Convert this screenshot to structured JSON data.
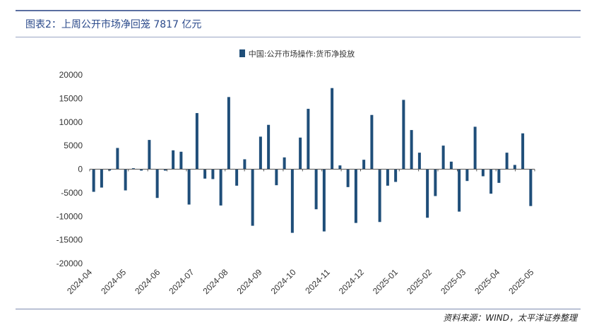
{
  "caption": "图表2：上周公开市场净回笼 7817 亿元",
  "source": "资料来源：WIND，太平洋证券整理",
  "chart_data": {
    "type": "bar",
    "legend": [
      "中国:公开市场操作:货币净投放"
    ],
    "legend_position": "top",
    "grid": false,
    "series_color": "#1f4e79",
    "ylim": [
      -20000,
      20000
    ],
    "yticks": [
      -20000,
      -15000,
      -10000,
      -5000,
      0,
      5000,
      10000,
      15000,
      20000
    ],
    "xticks": [
      "2024-04",
      "2024-05",
      "2024-06",
      "2024-07",
      "2024-08",
      "2024-09",
      "2024-10",
      "2024-11",
      "2024-12",
      "2025-01",
      "2025-02",
      "2025-03",
      "2025-04",
      "2025-05"
    ],
    "values": [
      -4800,
      -3900,
      -300,
      4500,
      -4500,
      200,
      -300,
      6200,
      -6100,
      -300,
      4000,
      3700,
      -7500,
      11900,
      -2000,
      -2100,
      -7700,
      15300,
      -3500,
      2100,
      -12000,
      6900,
      9400,
      -3400,
      2500,
      -13500,
      6700,
      12800,
      -8500,
      -13200,
      17200,
      800,
      -3800,
      -11400,
      2000,
      11500,
      -11200,
      -3500,
      -2700,
      14700,
      8300,
      3500,
      -10300,
      -5700,
      5000,
      1600,
      -9000,
      -2500,
      9000,
      -1500,
      -5200,
      -2900,
      3500,
      900,
      7600,
      -7817
    ]
  }
}
